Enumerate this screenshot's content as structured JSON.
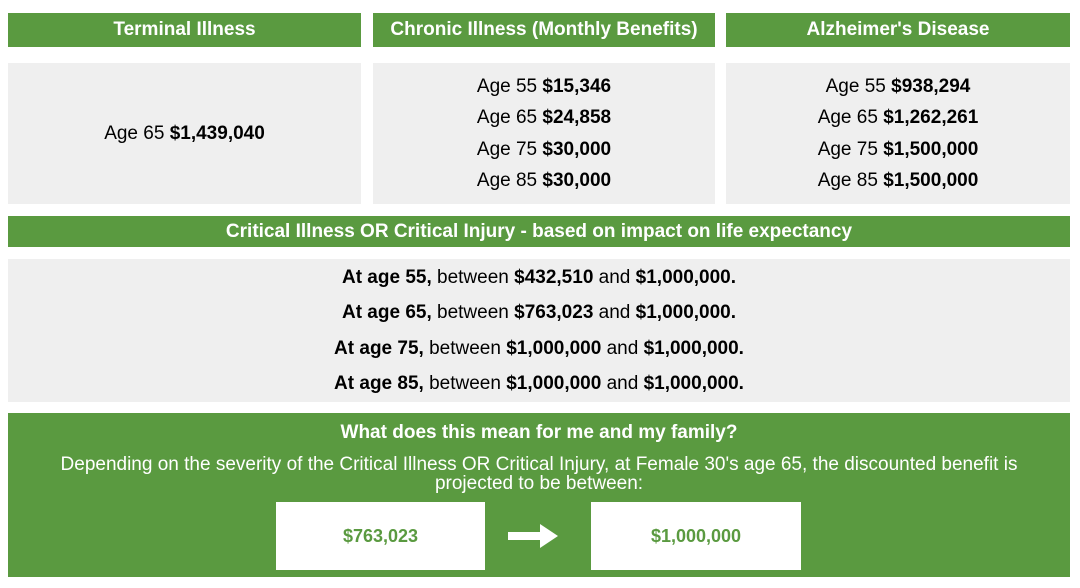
{
  "headers": {
    "terminal": "Terminal Illness",
    "chronic": "Chronic Illness (Monthly Benefits)",
    "alzheimers": "Alzheimer's Disease"
  },
  "terminal": [
    {
      "age": "Age 65",
      "amount": "$1,439,040"
    }
  ],
  "chronic": [
    {
      "age": "Age 55",
      "amount": "$15,346"
    },
    {
      "age": "Age 65",
      "amount": "$24,858"
    },
    {
      "age": "Age 75",
      "amount": "$30,000"
    },
    {
      "age": "Age 85",
      "amount": "$30,000"
    }
  ],
  "alzheimers": [
    {
      "age": "Age 55",
      "amount": "$938,294"
    },
    {
      "age": "Age 65",
      "amount": "$1,262,261"
    },
    {
      "age": "Age 75",
      "amount": "$1,500,000"
    },
    {
      "age": "Age 85",
      "amount": "$1,500,000"
    }
  ],
  "critical": {
    "title": "Critical Illness OR Critical Injury - based on impact on life expectancy",
    "rows": [
      {
        "age": "At age 55,",
        "between": "between",
        "low": "$432,510",
        "and": "and",
        "high": "$1,000,000."
      },
      {
        "age": "At age 65,",
        "between": "between",
        "low": "$763,023",
        "and": "and",
        "high": "$1,000,000."
      },
      {
        "age": "At age 75,",
        "between": "between",
        "low": "$1,000,000",
        "and": "and",
        "high": "$1,000,000."
      },
      {
        "age": "At age 85,",
        "between": "between",
        "low": "$1,000,000",
        "and": "and",
        "high": "$1,000,000."
      }
    ]
  },
  "bottom": {
    "question": "What does this mean for me and my family?",
    "description": "Depending on the severity of the Critical Illness OR Critical Injury, at Female 30's age 65, the discounted benefit is projected to be between:",
    "low": "$763,023",
    "high": "$1,000,000",
    "arrow_icon": "right-arrow-icon"
  },
  "colors": {
    "green": "#5a9a40",
    "panel": "#efefef"
  }
}
